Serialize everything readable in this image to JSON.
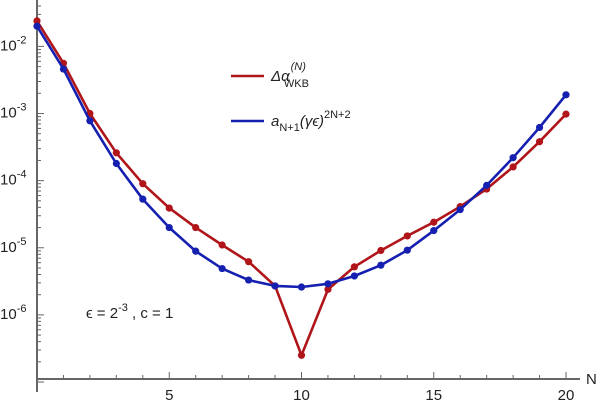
{
  "chart_data": {
    "type": "line",
    "xlabel": "N",
    "ylabel": "",
    "yscale": "log",
    "xlim": [
      0,
      20
    ],
    "ylim": [
      1e-07,
      0.04
    ],
    "x_ticks": [
      5,
      10,
      15,
      20
    ],
    "x_tick_labels": [
      "5",
      "10",
      "15",
      "20"
    ],
    "y_ticks": [
      1e-06,
      1e-05,
      0.0001,
      0.001,
      0.01
    ],
    "y_tick_labels": [
      {
        "base": "10",
        "exp": "-6"
      },
      {
        "base": "10",
        "exp": "-5"
      },
      {
        "base": "10",
        "exp": "-4"
      },
      {
        "base": "10",
        "exp": "-3"
      },
      {
        "base": "10",
        "exp": "-2"
      }
    ],
    "annotation": {
      "prefix": "ϵ = 2",
      "exp": "-3",
      "suffix": " , c = 1"
    },
    "series": [
      {
        "legend": {
          "main": "Δα",
          "sup": "(N)",
          "sub": "WKB"
        },
        "color": "#b0151a",
        "x": [
          0,
          1,
          2,
          3,
          4,
          5,
          6,
          7,
          8,
          9,
          10,
          11,
          12,
          13,
          14,
          15,
          16,
          17,
          18,
          19,
          20
        ],
        "y": [
          0.024,
          0.0056,
          0.001,
          0.00026,
          9e-05,
          3.9e-05,
          2e-05,
          1.1e-05,
          6.2e-06,
          2.7e-06,
          2.5e-07,
          2.4e-06,
          5.2e-06,
          9.1e-06,
          1.5e-05,
          2.4e-05,
          4.1e-05,
          7.5e-05,
          0.00016,
          0.00038,
          0.00098
        ]
      },
      {
        "legend": {
          "main": "a",
          "sub": "N+1",
          "mid": "(γϵ)",
          "sup": "2N+2"
        },
        "color": "#1620b0",
        "x": [
          0,
          1,
          2,
          3,
          4,
          5,
          6,
          7,
          8,
          9,
          10,
          11,
          12,
          13,
          14,
          15,
          16,
          17,
          18,
          19,
          20
        ],
        "y": [
          0.02,
          0.0046,
          0.00078,
          0.00018,
          5.3e-05,
          2e-05,
          8.9e-06,
          4.9e-06,
          3.3e-06,
          2.7e-06,
          2.6e-06,
          2.9e-06,
          3.8e-06,
          5.5e-06,
          9.2e-06,
          1.8e-05,
          3.7e-05,
          8.5e-05,
          0.00022,
          0.00062,
          0.0019
        ]
      }
    ]
  }
}
